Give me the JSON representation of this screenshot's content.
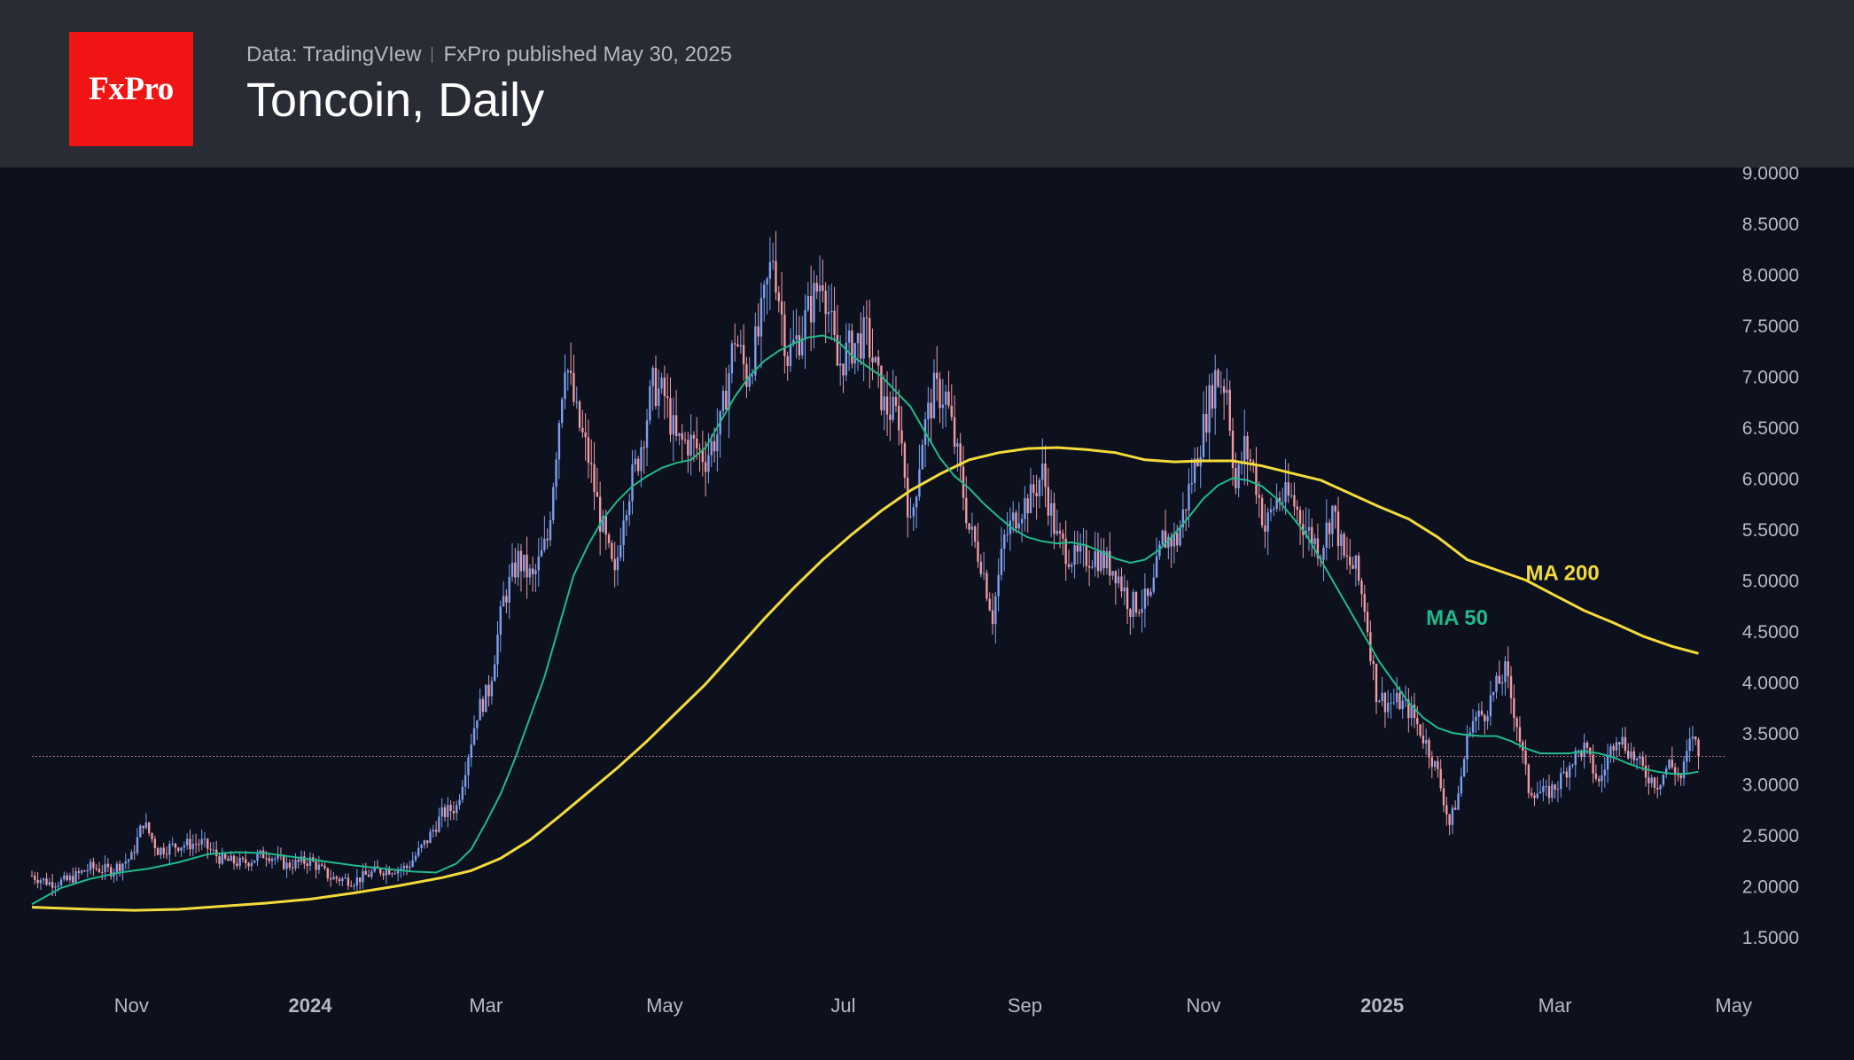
{
  "header": {
    "logo_text": "FxPro",
    "source": "Data: TradingVIew",
    "published": "FxPro published May 30, 2025",
    "title": "Toncoin, Daily"
  },
  "colors": {
    "background": "#0c111d",
    "header_bg": "#292b35",
    "logo_bg": "#f01414",
    "ma50": "#21b98a",
    "ma200": "#f4db3a",
    "candle_up": "#7d9ff0",
    "candle_down": "#f09aa2",
    "axis_text": "#b6bac4",
    "price_line": "#a07080"
  },
  "chart_data": {
    "type": "candlestick",
    "title": "Toncoin, Daily",
    "ylim": [
      1.25,
      9.0
    ],
    "yticks": [
      "1.5000",
      "2.0000",
      "2.5000",
      "3.0000",
      "3.5000",
      "4.0000",
      "4.5000",
      "5.0000",
      "5.5000",
      "6.0000",
      "6.5000",
      "7.0000",
      "7.5000",
      "8.0000",
      "8.5000",
      "9.0000"
    ],
    "x_start": "2023-09-28",
    "x_end": "2025-05-31",
    "x_range_days": [
      0,
      610
    ],
    "xticks": [
      {
        "label": "Nov",
        "day": 34,
        "bold": false
      },
      {
        "label": "2024",
        "day": 95,
        "bold": true
      },
      {
        "label": "Mar",
        "day": 155,
        "bold": false
      },
      {
        "label": "May",
        "day": 216,
        "bold": false
      },
      {
        "label": "Jul",
        "day": 277,
        "bold": false
      },
      {
        "label": "Sep",
        "day": 339,
        "bold": false
      },
      {
        "label": "Nov",
        "day": 400,
        "bold": false
      },
      {
        "label": "2025",
        "day": 461,
        "bold": true
      },
      {
        "label": "Mar",
        "day": 520,
        "bold": false
      },
      {
        "label": "May",
        "day": 581,
        "bold": false
      }
    ],
    "last_price": 3.27,
    "price_path": [
      [
        0,
        2.1
      ],
      [
        6,
        2.03
      ],
      [
        12,
        2.05
      ],
      [
        20,
        2.18
      ],
      [
        27,
        2.15
      ],
      [
        34,
        2.28
      ],
      [
        38,
        2.63
      ],
      [
        43,
        2.35
      ],
      [
        50,
        2.4
      ],
      [
        58,
        2.42
      ],
      [
        65,
        2.25
      ],
      [
        72,
        2.22
      ],
      [
        80,
        2.32
      ],
      [
        87,
        2.2
      ],
      [
        95,
        2.25
      ],
      [
        102,
        2.08
      ],
      [
        110,
        2.05
      ],
      [
        118,
        2.15
      ],
      [
        128,
        2.18
      ],
      [
        135,
        2.45
      ],
      [
        140,
        2.7
      ],
      [
        145,
        2.78
      ],
      [
        152,
        3.7
      ],
      [
        156,
        3.92
      ],
      [
        161,
        4.8
      ],
      [
        166,
        5.2
      ],
      [
        171,
        5.0
      ],
      [
        176,
        5.4
      ],
      [
        182,
        7.2
      ],
      [
        186,
        6.6
      ],
      [
        190,
        6.2
      ],
      [
        194,
        5.6
      ],
      [
        199,
        5.0
      ],
      [
        202,
        5.7
      ],
      [
        207,
        6.2
      ],
      [
        212,
        6.9
      ],
      [
        216,
        6.8
      ],
      [
        220,
        6.35
      ],
      [
        225,
        6.35
      ],
      [
        230,
        6.2
      ],
      [
        235,
        6.5
      ],
      [
        240,
        7.4
      ],
      [
        244,
        7.0
      ],
      [
        248,
        7.4
      ],
      [
        253,
        8.2
      ],
      [
        258,
        7.2
      ],
      [
        262,
        7.4
      ],
      [
        266,
        7.7
      ],
      [
        270,
        8.0
      ],
      [
        275,
        7.1
      ],
      [
        280,
        7.3
      ],
      [
        285,
        7.4
      ],
      [
        291,
        6.7
      ],
      [
        296,
        6.6
      ],
      [
        300,
        5.5
      ],
      [
        304,
        6.4
      ],
      [
        308,
        6.85
      ],
      [
        312,
        6.8
      ],
      [
        316,
        6.2
      ],
      [
        320,
        5.5
      ],
      [
        324,
        5.2
      ],
      [
        328,
        4.65
      ],
      [
        332,
        5.4
      ],
      [
        337,
        5.7
      ],
      [
        341,
        5.8
      ],
      [
        345,
        6.05
      ],
      [
        350,
        5.4
      ],
      [
        356,
        5.2
      ],
      [
        363,
        5.25
      ],
      [
        370,
        5.1
      ],
      [
        375,
        4.75
      ],
      [
        382,
        4.8
      ],
      [
        386,
        5.4
      ],
      [
        391,
        5.4
      ],
      [
        396,
        6.0
      ],
      [
        400,
        6.5
      ],
      [
        404,
        7.0
      ],
      [
        408,
        6.9
      ],
      [
        411,
        5.9
      ],
      [
        414,
        6.3
      ],
      [
        417,
        6.1
      ],
      [
        421,
        5.5
      ],
      [
        425,
        5.8
      ],
      [
        430,
        5.8
      ],
      [
        435,
        5.5
      ],
      [
        440,
        5.3
      ],
      [
        444,
        5.7
      ],
      [
        448,
        5.2
      ],
      [
        452,
        5.1
      ],
      [
        455,
        4.75
      ],
      [
        459,
        3.9
      ],
      [
        462,
        3.8
      ],
      [
        467,
        3.8
      ],
      [
        471,
        3.7
      ],
      [
        476,
        3.4
      ],
      [
        480,
        3.1
      ],
      [
        484,
        2.6
      ],
      [
        487,
        2.9
      ],
      [
        491,
        3.6
      ],
      [
        496,
        3.7
      ],
      [
        500,
        3.95
      ],
      [
        503,
        4.1
      ],
      [
        507,
        3.6
      ],
      [
        511,
        2.95
      ],
      [
        517,
        2.9
      ],
      [
        521,
        3.0
      ],
      [
        526,
        3.25
      ],
      [
        530,
        3.35
      ],
      [
        535,
        3.0
      ],
      [
        541,
        3.5
      ],
      [
        546,
        3.3
      ],
      [
        551,
        3.1
      ],
      [
        555,
        3.0
      ],
      [
        559,
        3.2
      ],
      [
        563,
        3.05
      ],
      [
        567,
        3.5
      ],
      [
        569,
        3.27
      ]
    ],
    "ma50": [
      [
        0,
        1.82
      ],
      [
        10,
        1.98
      ],
      [
        20,
        2.07
      ],
      [
        30,
        2.13
      ],
      [
        40,
        2.17
      ],
      [
        50,
        2.23
      ],
      [
        60,
        2.31
      ],
      [
        70,
        2.33
      ],
      [
        80,
        2.32
      ],
      [
        90,
        2.28
      ],
      [
        100,
        2.24
      ],
      [
        110,
        2.2
      ],
      [
        120,
        2.17
      ],
      [
        130,
        2.14
      ],
      [
        138,
        2.13
      ],
      [
        145,
        2.22
      ],
      [
        150,
        2.36
      ],
      [
        155,
        2.62
      ],
      [
        160,
        2.9
      ],
      [
        165,
        3.25
      ],
      [
        170,
        3.65
      ],
      [
        175,
        4.05
      ],
      [
        180,
        4.55
      ],
      [
        185,
        5.05
      ],
      [
        190,
        5.35
      ],
      [
        195,
        5.6
      ],
      [
        200,
        5.78
      ],
      [
        205,
        5.92
      ],
      [
        210,
        6.02
      ],
      [
        215,
        6.1
      ],
      [
        220,
        6.15
      ],
      [
        225,
        6.18
      ],
      [
        230,
        6.3
      ],
      [
        235,
        6.55
      ],
      [
        240,
        6.8
      ],
      [
        245,
        7.0
      ],
      [
        250,
        7.15
      ],
      [
        255,
        7.25
      ],
      [
        260,
        7.32
      ],
      [
        265,
        7.38
      ],
      [
        270,
        7.4
      ],
      [
        275,
        7.35
      ],
      [
        280,
        7.2
      ],
      [
        285,
        7.1
      ],
      [
        290,
        7.0
      ],
      [
        295,
        6.85
      ],
      [
        300,
        6.7
      ],
      [
        305,
        6.45
      ],
      [
        310,
        6.2
      ],
      [
        315,
        6.02
      ],
      [
        320,
        5.9
      ],
      [
        325,
        5.75
      ],
      [
        330,
        5.62
      ],
      [
        335,
        5.5
      ],
      [
        340,
        5.42
      ],
      [
        345,
        5.38
      ],
      [
        350,
        5.36
      ],
      [
        355,
        5.37
      ],
      [
        360,
        5.34
      ],
      [
        365,
        5.28
      ],
      [
        370,
        5.21
      ],
      [
        375,
        5.17
      ],
      [
        380,
        5.2
      ],
      [
        385,
        5.3
      ],
      [
        390,
        5.45
      ],
      [
        395,
        5.62
      ],
      [
        400,
        5.8
      ],
      [
        405,
        5.93
      ],
      [
        410,
        6.0
      ],
      [
        415,
        5.98
      ],
      [
        420,
        5.92
      ],
      [
        425,
        5.8
      ],
      [
        430,
        5.63
      ],
      [
        435,
        5.45
      ],
      [
        440,
        5.2
      ],
      [
        445,
        4.95
      ],
      [
        450,
        4.7
      ],
      [
        455,
        4.45
      ],
      [
        460,
        4.2
      ],
      [
        465,
        4.0
      ],
      [
        470,
        3.8
      ],
      [
        475,
        3.65
      ],
      [
        480,
        3.55
      ],
      [
        485,
        3.5
      ],
      [
        490,
        3.48
      ],
      [
        495,
        3.47
      ],
      [
        500,
        3.47
      ],
      [
        505,
        3.42
      ],
      [
        510,
        3.35
      ],
      [
        515,
        3.3
      ],
      [
        520,
        3.3
      ],
      [
        525,
        3.3
      ],
      [
        530,
        3.32
      ],
      [
        535,
        3.3
      ],
      [
        540,
        3.26
      ],
      [
        545,
        3.2
      ],
      [
        550,
        3.15
      ],
      [
        555,
        3.12
      ],
      [
        560,
        3.1
      ],
      [
        565,
        3.1
      ],
      [
        569,
        3.12
      ]
    ],
    "ma200": [
      [
        0,
        1.79
      ],
      [
        20,
        1.77
      ],
      [
        35,
        1.76
      ],
      [
        50,
        1.77
      ],
      [
        65,
        1.8
      ],
      [
        80,
        1.83
      ],
      [
        95,
        1.87
      ],
      [
        110,
        1.93
      ],
      [
        125,
        2.0
      ],
      [
        140,
        2.08
      ],
      [
        150,
        2.15
      ],
      [
        160,
        2.27
      ],
      [
        170,
        2.45
      ],
      [
        180,
        2.68
      ],
      [
        190,
        2.92
      ],
      [
        200,
        3.16
      ],
      [
        210,
        3.42
      ],
      [
        220,
        3.7
      ],
      [
        230,
        3.98
      ],
      [
        240,
        4.3
      ],
      [
        250,
        4.62
      ],
      [
        260,
        4.92
      ],
      [
        270,
        5.2
      ],
      [
        280,
        5.45
      ],
      [
        290,
        5.68
      ],
      [
        300,
        5.88
      ],
      [
        310,
        6.04
      ],
      [
        320,
        6.18
      ],
      [
        330,
        6.25
      ],
      [
        340,
        6.29
      ],
      [
        350,
        6.3
      ],
      [
        360,
        6.28
      ],
      [
        370,
        6.25
      ],
      [
        380,
        6.18
      ],
      [
        390,
        6.16
      ],
      [
        400,
        6.17
      ],
      [
        410,
        6.17
      ],
      [
        420,
        6.12
      ],
      [
        430,
        6.05
      ],
      [
        440,
        5.98
      ],
      [
        450,
        5.85
      ],
      [
        460,
        5.72
      ],
      [
        470,
        5.6
      ],
      [
        480,
        5.42
      ],
      [
        490,
        5.2
      ],
      [
        500,
        5.1
      ],
      [
        510,
        5.0
      ],
      [
        520,
        4.85
      ],
      [
        530,
        4.7
      ],
      [
        540,
        4.58
      ],
      [
        550,
        4.45
      ],
      [
        560,
        4.35
      ],
      [
        569,
        4.28
      ]
    ],
    "ma_labels": [
      {
        "text": "MA 200",
        "series": "ma200",
        "day": 510,
        "value": 5.0
      },
      {
        "text": "MA 50",
        "series": "ma50",
        "day": 476,
        "value": 4.56
      }
    ]
  }
}
